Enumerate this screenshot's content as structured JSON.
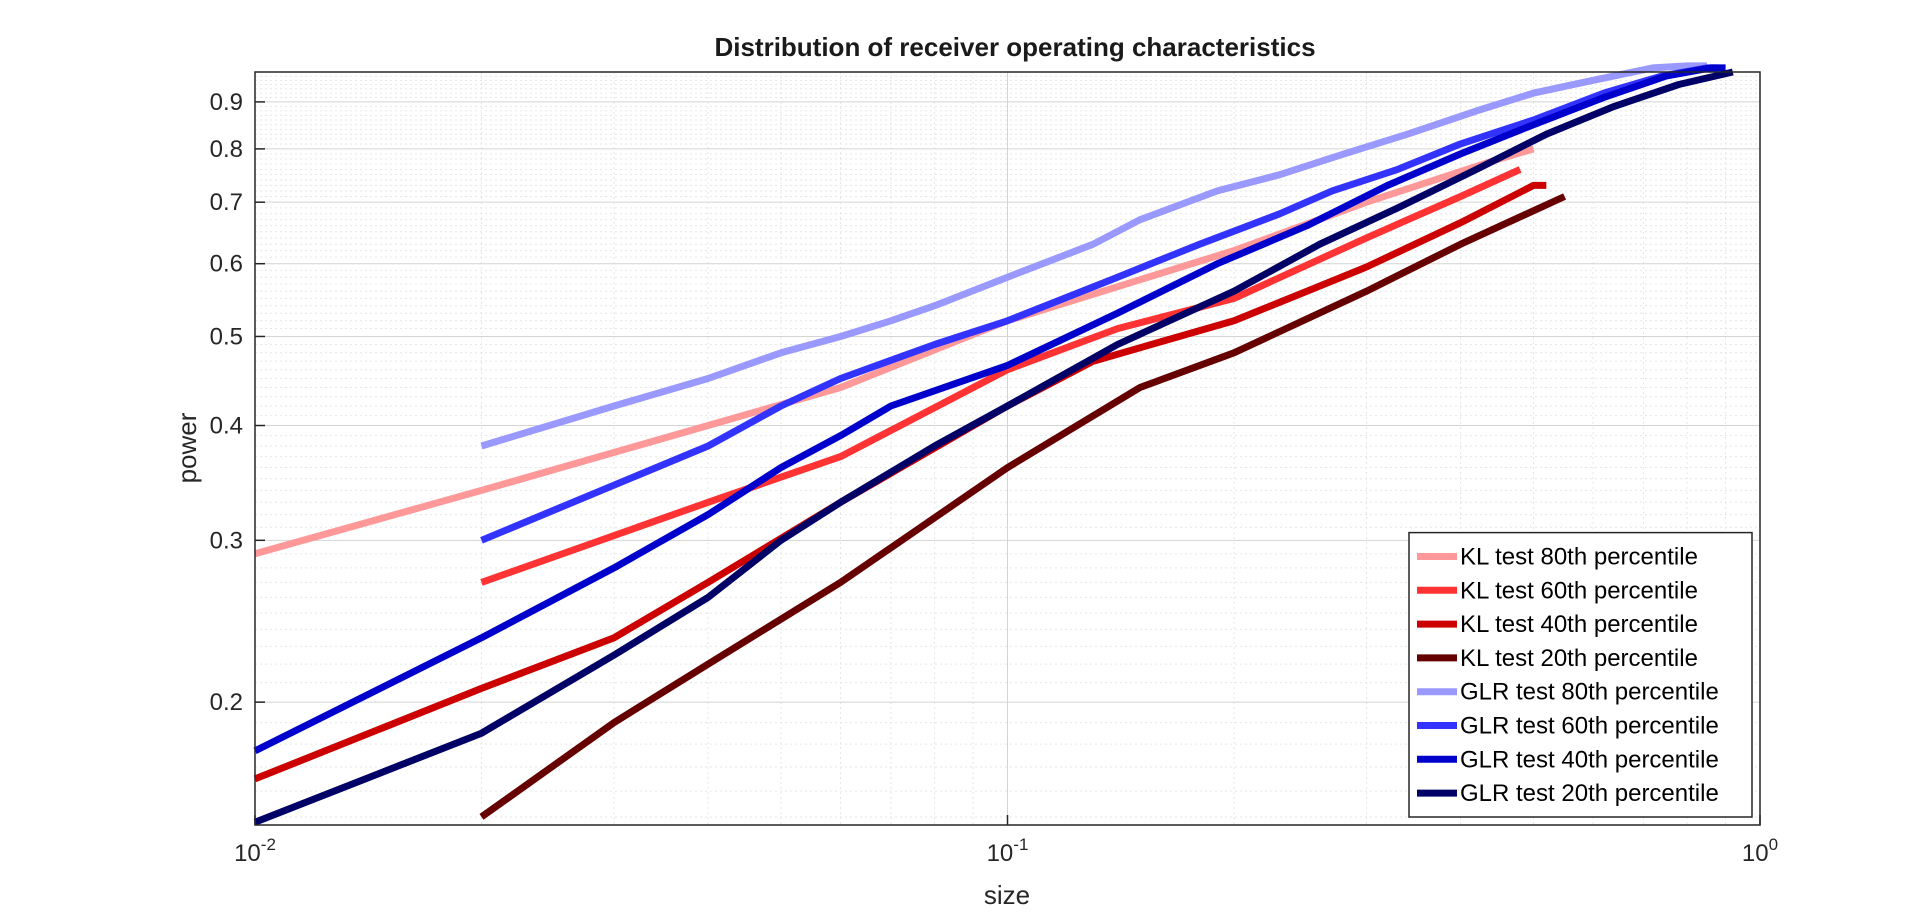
{
  "chart_data": {
    "type": "line",
    "title": "Distribution of receiver operating characteristics",
    "xlabel": "size",
    "ylabel": "power",
    "xscale": "log",
    "yscale": "log",
    "xlim": [
      0.01,
      1
    ],
    "ylim": [
      0.147,
      0.97
    ],
    "x_ticks": [
      {
        "value": 0.01,
        "base": "10",
        "exp": "-2"
      },
      {
        "value": 0.1,
        "base": "10",
        "exp": "-1"
      },
      {
        "value": 1,
        "base": "10",
        "exp": "0"
      }
    ],
    "y_ticks": [
      {
        "value": 0.2,
        "label": "0.2"
      },
      {
        "value": 0.3,
        "label": "0.3"
      },
      {
        "value": 0.4,
        "label": "0.4"
      },
      {
        "value": 0.5,
        "label": "0.5"
      },
      {
        "value": 0.6,
        "label": "0.6"
      },
      {
        "value": 0.7,
        "label": "0.7"
      },
      {
        "value": 0.8,
        "label": "0.8"
      },
      {
        "value": 0.9,
        "label": "0.9"
      }
    ],
    "grid": true,
    "minor_grid": true,
    "legend_position": "bottom-right",
    "series": [
      {
        "name": "KL test 80th percentile",
        "color": "#ff9999",
        "x": [
          0.01,
          0.02,
          0.04,
          0.06,
          0.1,
          0.2,
          0.3,
          0.45,
          0.5
        ],
        "y": [
          0.29,
          0.34,
          0.4,
          0.44,
          0.52,
          0.62,
          0.7,
          0.78,
          0.8
        ]
      },
      {
        "name": "KL test 60th percentile",
        "color": "#ff3333",
        "x": [
          0.02,
          0.04,
          0.06,
          0.1,
          0.14,
          0.2,
          0.3,
          0.4,
          0.48
        ],
        "y": [
          0.27,
          0.33,
          0.37,
          0.46,
          0.51,
          0.55,
          0.64,
          0.71,
          0.76
        ]
      },
      {
        "name": "KL test 40th percentile",
        "color": "#cc0000",
        "x": [
          0.01,
          0.02,
          0.03,
          0.04,
          0.06,
          0.1,
          0.13,
          0.2,
          0.25,
          0.3,
          0.4,
          0.5,
          0.52
        ],
        "y": [
          0.165,
          0.207,
          0.235,
          0.27,
          0.33,
          0.42,
          0.47,
          0.52,
          0.56,
          0.595,
          0.665,
          0.73,
          0.73
        ]
      },
      {
        "name": "KL test 20th percentile",
        "color": "#660000",
        "x": [
          0.02,
          0.03,
          0.04,
          0.06,
          0.1,
          0.15,
          0.2,
          0.3,
          0.4,
          0.55
        ],
        "y": [
          0.15,
          0.19,
          0.22,
          0.27,
          0.36,
          0.44,
          0.48,
          0.56,
          0.63,
          0.71
        ]
      },
      {
        "name": "GLR test 80th percentile",
        "color": "#9999ff",
        "x": [
          0.02,
          0.03,
          0.04,
          0.05,
          0.06,
          0.07,
          0.08,
          0.1,
          0.13,
          0.15,
          0.19,
          0.23,
          0.28,
          0.34,
          0.42,
          0.5,
          0.6,
          0.72,
          0.8,
          0.85
        ],
        "y": [
          0.38,
          0.42,
          0.45,
          0.48,
          0.5,
          0.52,
          0.54,
          0.58,
          0.63,
          0.67,
          0.72,
          0.75,
          0.79,
          0.83,
          0.88,
          0.92,
          0.95,
          0.98,
          0.985,
          0.985
        ]
      },
      {
        "name": "GLR test 60th percentile",
        "color": "#3333ff",
        "x": [
          0.02,
          0.04,
          0.05,
          0.06,
          0.08,
          0.1,
          0.14,
          0.18,
          0.23,
          0.27,
          0.33,
          0.4,
          0.5,
          0.62,
          0.74,
          0.85,
          0.88
        ],
        "y": [
          0.3,
          0.38,
          0.42,
          0.45,
          0.49,
          0.52,
          0.58,
          0.63,
          0.68,
          0.72,
          0.76,
          0.81,
          0.86,
          0.92,
          0.96,
          0.98,
          0.98
        ]
      },
      {
        "name": "GLR test 40th percentile",
        "color": "#0000cc",
        "x": [
          0.01,
          0.02,
          0.03,
          0.04,
          0.05,
          0.06,
          0.07,
          0.1,
          0.14,
          0.19,
          0.25,
          0.32,
          0.4,
          0.5,
          0.62,
          0.75,
          0.86,
          0.9
        ],
        "y": [
          0.177,
          0.235,
          0.28,
          0.32,
          0.36,
          0.39,
          0.42,
          0.465,
          0.53,
          0.6,
          0.66,
          0.73,
          0.79,
          0.85,
          0.91,
          0.96,
          0.98,
          0.98
        ]
      },
      {
        "name": "GLR test 20th percentile",
        "color": "#000066",
        "x": [
          0.01,
          0.02,
          0.03,
          0.04,
          0.05,
          0.06,
          0.08,
          0.1,
          0.14,
          0.2,
          0.26,
          0.33,
          0.42,
          0.52,
          0.64,
          0.78,
          0.92
        ],
        "y": [
          0.148,
          0.185,
          0.225,
          0.26,
          0.3,
          0.33,
          0.38,
          0.42,
          0.49,
          0.56,
          0.63,
          0.69,
          0.76,
          0.83,
          0.89,
          0.94,
          0.97
        ]
      }
    ]
  }
}
